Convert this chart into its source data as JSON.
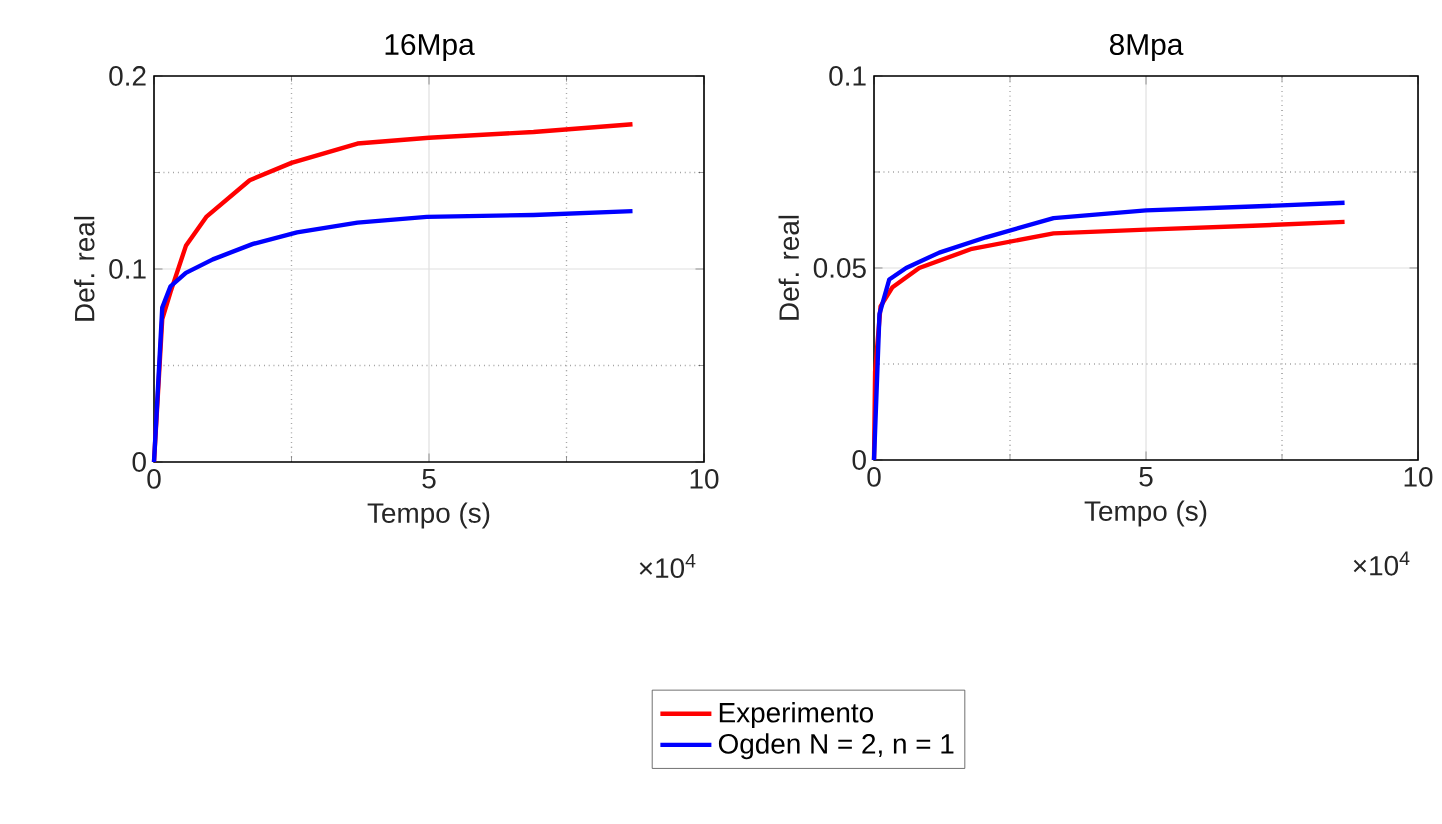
{
  "chart_data": [
    {
      "type": "line",
      "title": "16Mpa",
      "xlabel": "Tempo (s)",
      "ylabel": "Def. real",
      "xlim": [
        0,
        10
      ],
      "ylim": [
        0,
        0.2
      ],
      "xticks": [
        0,
        5,
        10
      ],
      "yticks": [
        0,
        0.1,
        0.2
      ],
      "grid": true,
      "legend": "bottom",
      "line_style": "solid",
      "annotations": [
        "×10$^{4}$"
      ],
      "series": [
        {
          "name": "Experimento",
          "color": "#ff0000",
          "x": [
            0,
            0.15,
            0.3,
            0.58,
            0.95,
            1.74,
            2.5,
            3.7,
            5.0,
            6.9,
            8.7
          ],
          "values": [
            0,
            0.074,
            0.088,
            0.112,
            0.127,
            0.146,
            0.155,
            0.165,
            0.168,
            0.171,
            0.175
          ]
        },
        {
          "name": "Ogden N = 2, n = 1",
          "color": "#0000ff",
          "x": [
            0,
            0.15,
            0.3,
            0.58,
            1.07,
            1.8,
            2.6,
            3.7,
            4.96,
            6.9,
            8.7
          ],
          "values": [
            0,
            0.08,
            0.091,
            0.098,
            0.105,
            0.113,
            0.119,
            0.124,
            0.127,
            0.128,
            0.13
          ]
        }
      ]
    },
    {
      "type": "line",
      "title": "8Mpa",
      "xlabel": "Tempo (s)",
      "ylabel": "Def. real",
      "xlim": [
        0,
        10
      ],
      "ylim": [
        0,
        0.1
      ],
      "xticks": [
        0,
        5,
        10
      ],
      "yticks": [
        0,
        0.05,
        0.1
      ],
      "grid": true,
      "line_style": "solid",
      "annotations": [
        "×10$^{4}$"
      ],
      "series": [
        {
          "color": "#ff0000",
          "x": [
            0,
            0.02,
            0.12,
            0.34,
            0.83,
            1.8,
            3.3,
            5.0,
            6.96,
            8.65
          ],
          "values": [
            0,
            0.023,
            0.04,
            0.045,
            0.05,
            0.055,
            0.059,
            0.06,
            0.061,
            0.062
          ]
        },
        {
          "color": "#0000ff",
          "x": [
            0,
            0.1,
            0.28,
            0.59,
            1.2,
            2.06,
            3.3,
            5.0,
            6.96,
            8.65
          ],
          "values": [
            0,
            0.038,
            0.047,
            0.05,
            0.054,
            0.058,
            0.063,
            0.065,
            0.066,
            0.067
          ]
        }
      ]
    }
  ]
}
